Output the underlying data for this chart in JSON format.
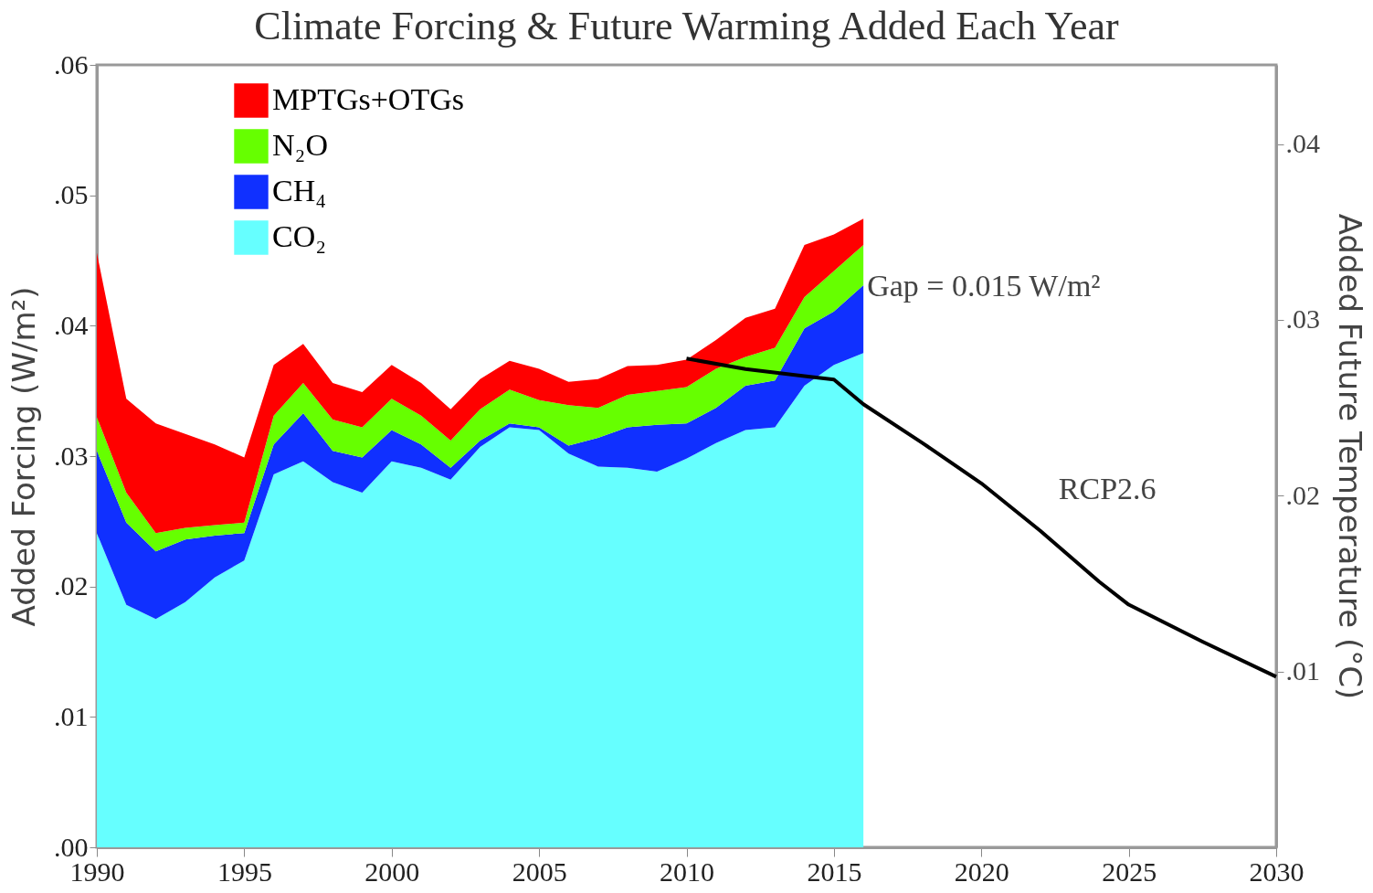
{
  "chart_data": {
    "type": "area",
    "title": "Climate Forcing & Future Warming Added Each Year",
    "ylabel": "Added Forcing (W/m²)",
    "y2label": "Added Future Temperature (°C)",
    "x": [
      1990,
      1991,
      1992,
      1993,
      1994,
      1995,
      1996,
      1997,
      1998,
      1999,
      2000,
      2001,
      2002,
      2003,
      2004,
      2005,
      2006,
      2007,
      2008,
      2009,
      2010,
      2011,
      2012,
      2013,
      2014,
      2015,
      2016
    ],
    "stacked": true,
    "series": [
      {
        "name": "CO₂",
        "color": "#66ffff",
        "values": [
          0.0241,
          0.0186,
          0.0175,
          0.0188,
          0.0207,
          0.022,
          0.0286,
          0.0296,
          0.028,
          0.0272,
          0.0296,
          0.0291,
          0.0282,
          0.0307,
          0.0322,
          0.032,
          0.0302,
          0.0292,
          0.0291,
          0.0288,
          0.0298,
          0.031,
          0.032,
          0.0322,
          0.0354,
          0.037,
          0.0379
        ]
      },
      {
        "name": "CH₄",
        "color": "#1030ff",
        "values": [
          0.0063,
          0.0063,
          0.0052,
          0.0048,
          0.0032,
          0.0021,
          0.0023,
          0.0037,
          0.0024,
          0.0027,
          0.0024,
          0.0018,
          0.0009,
          0.0005,
          0.0003,
          0.0002,
          0.0006,
          0.0022,
          0.0031,
          0.0036,
          0.0027,
          0.0027,
          0.0034,
          0.0036,
          0.0044,
          0.0041,
          0.0052
        ]
      },
      {
        "name": "N₂O",
        "color": "#66ff00",
        "values": [
          0.0026,
          0.0023,
          0.0014,
          0.0009,
          0.0008,
          0.0008,
          0.0022,
          0.0023,
          0.0024,
          0.0023,
          0.0024,
          0.0022,
          0.0021,
          0.0024,
          0.0026,
          0.0021,
          0.0031,
          0.0023,
          0.0025,
          0.0026,
          0.0028,
          0.003,
          0.0022,
          0.0025,
          0.0024,
          0.0031,
          0.0031
        ]
      },
      {
        "name": "MPTGs+OTGs",
        "color": "#ff0000",
        "values": [
          0.0126,
          0.0072,
          0.0084,
          0.0072,
          0.0062,
          0.005,
          0.0039,
          0.003,
          0.0028,
          0.0027,
          0.0026,
          0.0025,
          0.0024,
          0.0023,
          0.0022,
          0.0024,
          0.0018,
          0.0022,
          0.0022,
          0.002,
          0.0021,
          0.0022,
          0.003,
          0.003,
          0.004,
          0.0028,
          0.002
        ]
      },
      {
        "name": "RCP2.6",
        "type": "line",
        "axis": "y2",
        "color": "#000000",
        "x": [
          2010,
          2012,
          2014,
          2015,
          2016,
          2018,
          2020,
          2022,
          2024,
          2025,
          2027.5,
          2030
        ],
        "values": [
          0.0278,
          0.0272,
          0.0268,
          0.0266,
          0.0252,
          0.023,
          0.0207,
          0.018,
          0.0151,
          0.0138,
          0.0117,
          0.0097
        ]
      }
    ],
    "xlim": [
      1990,
      2030
    ],
    "xticks": [
      1990,
      1995,
      2000,
      2005,
      2010,
      2015,
      2020,
      2025,
      2030
    ],
    "ylim": [
      0,
      0.06
    ],
    "yticks": [
      {
        "value": 0,
        "label": ".00"
      },
      {
        "value": 0.01,
        "label": ".01"
      },
      {
        "value": 0.02,
        "label": ".02"
      },
      {
        "value": 0.03,
        "label": ".03"
      },
      {
        "value": 0.04,
        "label": ".04"
      },
      {
        "value": 0.05,
        "label": ".05"
      },
      {
        "value": 0.06,
        "label": ".06"
      }
    ],
    "y2lim": [
      0,
      0.0445
    ],
    "y2ticks": [
      {
        "value": 0.01,
        "label": ".01"
      },
      {
        "value": 0.02,
        "label": ".02"
      },
      {
        "value": 0.03,
        "label": ".03"
      },
      {
        "value": 0.04,
        "label": ".04"
      }
    ],
    "annotations": [
      {
        "text": "Gap = 0.015 W/m²",
        "x": 2016,
        "y": 0.043
      }
    ],
    "legend": "top left",
    "grid": false
  }
}
